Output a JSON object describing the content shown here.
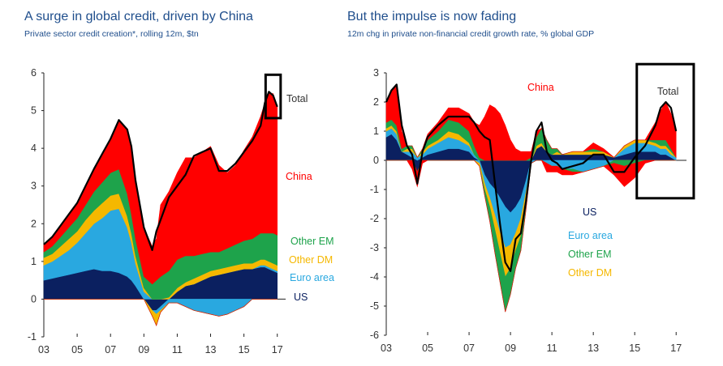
{
  "charts": [
    {
      "title": "A surge in global credit, driven by China",
      "subtitle": "Private sector credit creation*, rolling 12m, $tn"
    },
    {
      "title": "But the impulse is now fading",
      "subtitle": "12m chg in private non-financial credit growth rate, % global GDP"
    }
  ],
  "chart_data": [
    {
      "type": "area",
      "title": "A surge in global credit, driven by China",
      "subtitle": "Private sector credit creation*, rolling 12m, $tn",
      "x_ticks": [
        "03",
        "05",
        "07",
        "09",
        "11",
        "13",
        "15",
        "17"
      ],
      "xlim": [
        2003,
        2017.5
      ],
      "ylim": [
        -1,
        6
      ],
      "y_ticks": [
        "-1",
        "0",
        "1",
        "2",
        "3",
        "4",
        "5",
        "6"
      ],
      "x": [
        2003.0,
        2003.5,
        2004.0,
        2004.5,
        2005.0,
        2005.5,
        2006.0,
        2006.5,
        2007.0,
        2007.5,
        2008.0,
        2008.25,
        2008.5,
        2009.0,
        2009.5,
        2009.75,
        2010.0,
        2010.5,
        2011.0,
        2011.5,
        2012.0,
        2012.5,
        2013.0,
        2013.5,
        2014.0,
        2014.5,
        2015.0,
        2015.5,
        2016.0,
        2016.25,
        2016.5,
        2016.75,
        2017.0
      ],
      "series": [
        {
          "name": "US",
          "color": "#0b2060",
          "values": [
            0.5,
            0.55,
            0.6,
            0.65,
            0.7,
            0.75,
            0.8,
            0.75,
            0.75,
            0.7,
            0.6,
            0.5,
            0.35,
            0.0,
            -0.3,
            -0.3,
            -0.2,
            0.0,
            0.2,
            0.35,
            0.4,
            0.5,
            0.6,
            0.65,
            0.7,
            0.75,
            0.8,
            0.8,
            0.85,
            0.85,
            0.8,
            0.75,
            0.7
          ]
        },
        {
          "name": "Euro area",
          "color": "#29a8e0",
          "values": [
            0.4,
            0.45,
            0.55,
            0.65,
            0.8,
            1.0,
            1.2,
            1.4,
            1.6,
            1.7,
            1.3,
            1.0,
            0.6,
            0.2,
            0.0,
            -0.1,
            -0.1,
            -0.1,
            -0.1,
            -0.2,
            -0.3,
            -0.35,
            -0.4,
            -0.45,
            -0.4,
            -0.3,
            -0.2,
            0.0,
            0.05,
            0.05,
            0.05,
            0.05,
            0.05
          ]
        },
        {
          "name": "Other DM",
          "color": "#f5b800",
          "values": [
            0.2,
            0.2,
            0.25,
            0.3,
            0.3,
            0.35,
            0.35,
            0.4,
            0.4,
            0.4,
            0.3,
            0.25,
            0.2,
            0.1,
            -0.15,
            -0.3,
            -0.05,
            0.05,
            0.1,
            0.1,
            0.15,
            0.15,
            0.15,
            0.15,
            0.15,
            0.15,
            0.15,
            0.15,
            0.15,
            0.15,
            0.15,
            0.15,
            0.15
          ]
        },
        {
          "name": "Other EM",
          "color": "#1ea34b",
          "values": [
            0.15,
            0.2,
            0.25,
            0.3,
            0.35,
            0.4,
            0.5,
            0.55,
            0.6,
            0.65,
            0.6,
            0.5,
            0.45,
            0.3,
            0.4,
            0.5,
            0.6,
            0.7,
            0.75,
            0.7,
            0.6,
            0.55,
            0.5,
            0.45,
            0.5,
            0.55,
            0.6,
            0.65,
            0.7,
            0.7,
            0.75,
            0.8,
            0.8
          ]
        },
        {
          "name": "China",
          "color": "#ff0000",
          "values": [
            0.2,
            0.25,
            0.3,
            0.35,
            0.4,
            0.5,
            0.6,
            0.75,
            0.9,
            1.3,
            1.7,
            1.8,
            1.6,
            1.3,
            1.0,
            1.1,
            1.9,
            2.1,
            2.3,
            2.6,
            2.6,
            2.7,
            2.8,
            2.3,
            2.0,
            2.1,
            2.4,
            2.7,
            3.1,
            3.45,
            3.7,
            3.7,
            3.4
          ]
        }
      ],
      "total": {
        "name": "Total",
        "color": "#000000",
        "values": [
          1.45,
          1.65,
          1.95,
          2.25,
          2.55,
          3.0,
          3.45,
          3.85,
          4.25,
          4.75,
          4.5,
          4.05,
          3.15,
          1.9,
          1.3,
          1.8,
          2.1,
          2.7,
          3.0,
          3.3,
          3.8,
          3.9,
          4.0,
          3.4,
          3.4,
          3.6,
          3.9,
          4.2,
          4.6,
          5.2,
          5.5,
          5.4,
          5.1
        ]
      },
      "annotations": [
        "China",
        "Other EM",
        "Other DM",
        "Euro area",
        "US",
        "Total"
      ],
      "highlight_box": {
        "x_from": 2016.3,
        "x_to": 2017.2,
        "y_from": 4.8,
        "y_to": 5.95
      }
    },
    {
      "type": "area",
      "title": "But the impulse is now fading",
      "subtitle": "12m chg in private non-financial credit growth rate, % global GDP",
      "x_ticks": [
        "03",
        "05",
        "07",
        "09",
        "11",
        "13",
        "15",
        "17"
      ],
      "xlim": [
        2003,
        2017.5
      ],
      "ylim": [
        -6,
        3
      ],
      "y_ticks": [
        "-6",
        "-5",
        "-4",
        "-3",
        "-2",
        "-1",
        "0",
        "1",
        "2",
        "3"
      ],
      "x": [
        2003.0,
        2003.25,
        2003.5,
        2003.75,
        2004.0,
        2004.25,
        2004.5,
        2004.75,
        2005.0,
        2005.5,
        2006.0,
        2006.5,
        2007.0,
        2007.25,
        2007.5,
        2007.75,
        2008.0,
        2008.25,
        2008.5,
        2008.75,
        2009.0,
        2009.25,
        2009.5,
        2009.75,
        2010.0,
        2010.25,
        2010.5,
        2010.75,
        2011.0,
        2011.25,
        2011.5,
        2012.0,
        2012.5,
        2013.0,
        2013.5,
        2014.0,
        2014.5,
        2015.0,
        2015.5,
        2016.0,
        2016.25,
        2016.5,
        2016.75,
        2017.0
      ],
      "series": [
        {
          "name": "US",
          "color": "#0b2060",
          "values": [
            0.8,
            0.9,
            0.7,
            0.3,
            0.2,
            0.1,
            -0.4,
            0.1,
            0.2,
            0.3,
            0.4,
            0.4,
            0.3,
            0.1,
            0.0,
            -0.5,
            -0.8,
            -1.0,
            -1.3,
            -1.6,
            -1.8,
            -1.6,
            -1.3,
            -0.7,
            0.0,
            0.4,
            0.5,
            0.3,
            0.2,
            0.2,
            0.2,
            0.2,
            0.2,
            0.2,
            0.2,
            0.1,
            0.2,
            0.3,
            0.3,
            0.3,
            0.2,
            0.2,
            0.1,
            0.0
          ]
        },
        {
          "name": "Euro area",
          "color": "#29a8e0",
          "values": [
            0.2,
            0.2,
            0.2,
            0.0,
            0.1,
            0.2,
            0.1,
            0.1,
            0.2,
            0.3,
            0.4,
            0.3,
            0.2,
            0.1,
            -0.1,
            -0.3,
            -0.5,
            -0.9,
            -1.2,
            -1.4,
            -1.1,
            -0.9,
            -0.7,
            -0.4,
            -0.1,
            0.0,
            0.0,
            -0.1,
            -0.2,
            -0.2,
            -0.3,
            -0.3,
            -0.4,
            -0.3,
            -0.2,
            0.0,
            0.2,
            0.3,
            0.3,
            0.2,
            0.2,
            0.2,
            0.1,
            0.1
          ]
        },
        {
          "name": "Other DM",
          "color": "#f5b800",
          "values": [
            0.1,
            0.1,
            0.1,
            0.0,
            0.1,
            0.1,
            0.0,
            0.1,
            0.1,
            0.1,
            0.2,
            0.2,
            0.1,
            0.0,
            -0.1,
            -0.2,
            -0.3,
            -0.5,
            -0.7,
            -1.0,
            -0.8,
            -0.6,
            -0.6,
            -0.3,
            0.0,
            0.1,
            0.1,
            0.0,
            0.0,
            0.1,
            0.0,
            0.1,
            0.1,
            0.1,
            0.1,
            0.0,
            0.1,
            0.1,
            0.1,
            0.1,
            0.1,
            0.1,
            0.1,
            0.0
          ]
        },
        {
          "name": "Other EM",
          "color": "#1ea34b",
          "values": [
            0.2,
            0.2,
            0.2,
            0.1,
            0.1,
            0.1,
            0.0,
            0.1,
            0.2,
            0.3,
            0.4,
            0.4,
            0.4,
            0.3,
            0.1,
            -0.2,
            -0.5,
            -0.8,
            -1.0,
            -1.2,
            -0.9,
            -0.6,
            -0.5,
            -0.3,
            0.1,
            0.3,
            0.5,
            0.4,
            0.2,
            0.1,
            0.0,
            -0.1,
            0.0,
            0.1,
            0.0,
            -0.1,
            -0.2,
            -0.1,
            0.0,
            0.1,
            0.2,
            0.2,
            0.1,
            0.0
          ]
        },
        {
          "name": "China",
          "color": "#ff0000",
          "values": [
            0.7,
            1.0,
            1.4,
            0.6,
            0.0,
            -0.3,
            -0.5,
            -0.1,
            0.2,
            0.3,
            0.4,
            0.5,
            0.6,
            0.8,
            1.1,
            1.5,
            1.9,
            1.8,
            1.6,
            1.2,
            0.7,
            0.4,
            0.3,
            0.3,
            0.2,
            0.2,
            0.0,
            -0.3,
            -0.2,
            -0.2,
            -0.2,
            -0.1,
            0.0,
            0.2,
            0.1,
            -0.4,
            -0.7,
            -0.5,
            -0.1,
            0.6,
            1.0,
            1.3,
            1.2,
            0.9
          ]
        }
      ],
      "total": {
        "name": "Total",
        "color": "#000000",
        "values": [
          2.0,
          2.4,
          2.6,
          1.2,
          0.5,
          0.2,
          -0.8,
          0.3,
          0.8,
          1.2,
          1.5,
          1.5,
          1.5,
          1.3,
          1.0,
          0.8,
          0.7,
          -0.8,
          -2.2,
          -3.5,
          -3.8,
          -2.7,
          -2.5,
          -1.4,
          0.0,
          1.0,
          1.3,
          0.3,
          0.0,
          -0.1,
          -0.3,
          -0.2,
          -0.1,
          0.2,
          0.2,
          -0.4,
          -0.4,
          0.1,
          0.5,
          1.2,
          1.8,
          2.0,
          1.8,
          1.0
        ]
      },
      "annotations": [
        "China",
        "US",
        "Euro area",
        "Other EM",
        "Other DM",
        "Total"
      ],
      "highlight_box": {
        "x_from": 2015.1,
        "x_to": 2017.85,
        "y_from": -1.3,
        "y_to": 3.3
      }
    }
  ]
}
